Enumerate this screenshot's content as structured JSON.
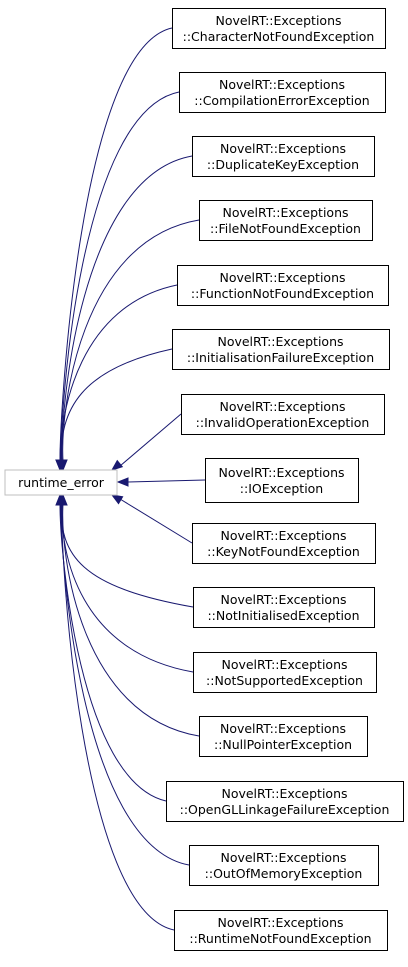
{
  "root": {
    "label": "runtime_error"
  },
  "classes": [
    {
      "line1": "NovelRT::Exceptions",
      "line2": "::CharacterNotFoundException"
    },
    {
      "line1": "NovelRT::Exceptions",
      "line2": "::CompilationErrorException"
    },
    {
      "line1": "NovelRT::Exceptions",
      "line2": "::DuplicateKeyException"
    },
    {
      "line1": "NovelRT::Exceptions",
      "line2": "::FileNotFoundException"
    },
    {
      "line1": "NovelRT::Exceptions",
      "line2": "::FunctionNotFoundException"
    },
    {
      "line1": "NovelRT::Exceptions",
      "line2": "::InitialisationFailureException"
    },
    {
      "line1": "NovelRT::Exceptions",
      "line2": "::InvalidOperationException"
    },
    {
      "line1": "NovelRT::Exceptions",
      "line2": "::IOException"
    },
    {
      "line1": "NovelRT::Exceptions",
      "line2": "::KeyNotFoundException"
    },
    {
      "line1": "NovelRT::Exceptions",
      "line2": "::NotInitialisedException"
    },
    {
      "line1": "NovelRT::Exceptions",
      "line2": "::NotSupportedException"
    },
    {
      "line1": "NovelRT::Exceptions",
      "line2": "::NullPointerException"
    },
    {
      "line1": "NovelRT::Exceptions",
      "line2": "::OpenGLLinkageFailureException"
    },
    {
      "line1": "NovelRT::Exceptions",
      "line2": "::OutOfMemoryException"
    },
    {
      "line1": "NovelRT::Exceptions",
      "line2": "::RuntimeNotFoundException"
    }
  ],
  "colors": {
    "edge": "#191970",
    "root_border": "#bfbfbf",
    "node_border": "#000000"
  }
}
